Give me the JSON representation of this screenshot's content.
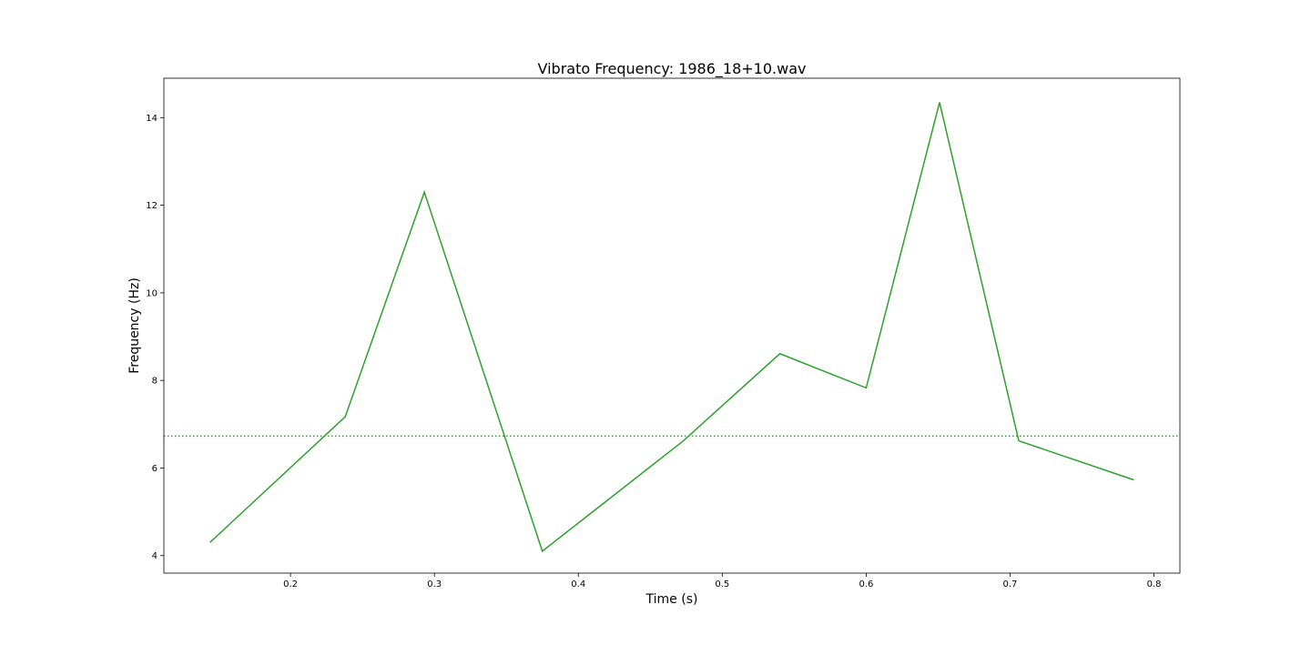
{
  "chart_data": {
    "type": "line",
    "title": "Vibrato Frequency: 1986_18+10.wav",
    "xlabel": "Time (s)",
    "ylabel": "Frequency (Hz)",
    "xlim": [
      0.112,
      0.818
    ],
    "ylim": [
      3.6,
      14.9
    ],
    "x_ticks": [
      0.2,
      0.3,
      0.4,
      0.5,
      0.6,
      0.7,
      0.8
    ],
    "x_tick_labels": [
      "0.2",
      "0.3",
      "0.4",
      "0.5",
      "0.6",
      "0.7",
      "0.8"
    ],
    "y_ticks": [
      4,
      6,
      8,
      10,
      12,
      14
    ],
    "y_tick_labels": [
      "4",
      "6",
      "8",
      "10",
      "12",
      "14"
    ],
    "grid": false,
    "series": [
      {
        "color": "#2ca02c",
        "style": "solid",
        "x": [
          0.144,
          0.238,
          0.293,
          0.375,
          0.473,
          0.54,
          0.6,
          0.651,
          0.706,
          0.786
        ],
        "y": [
          4.3,
          7.17,
          12.3,
          4.1,
          6.62,
          8.61,
          7.83,
          14.35,
          6.62,
          5.73
        ]
      }
    ],
    "reference_lines": [
      {
        "orientation": "horizontal",
        "y": 6.73,
        "color": "#2ca02c",
        "style": "dotted"
      }
    ]
  }
}
